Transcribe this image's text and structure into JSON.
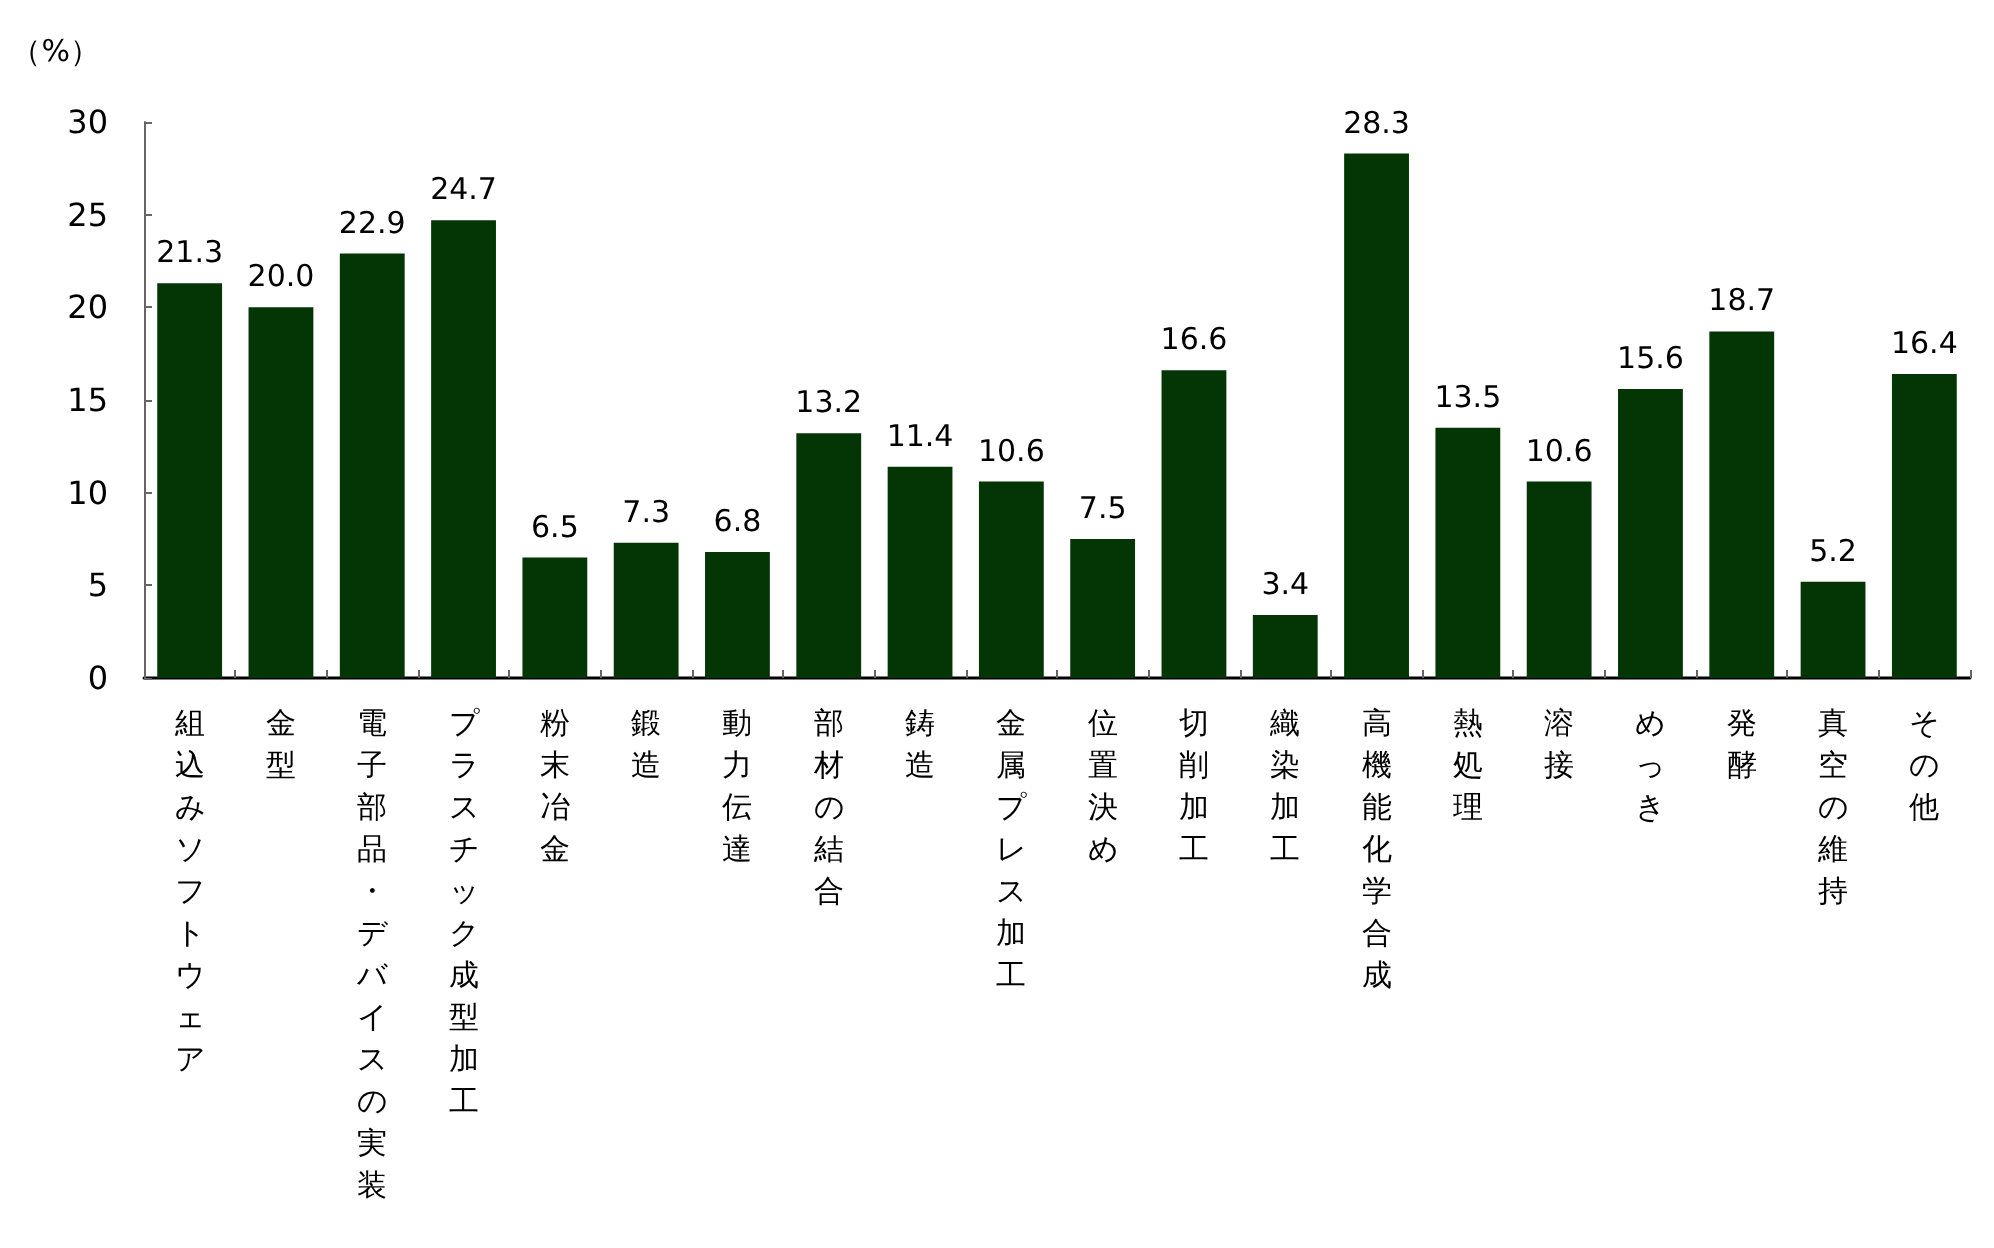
{
  "chart_data": {
    "type": "bar",
    "ylabel": "（%）",
    "categories": [
      "組込みソフトウェア",
      "金型",
      "電子部品・デバイスの実装",
      "プラスチック成型加工",
      "粉末冶金",
      "鍛造",
      "動力伝達",
      "部材の結合",
      "鋳造",
      "金属プレス加工",
      "位置決め",
      "切削加工",
      "織染加工",
      "高機能化学合成",
      "熱処理",
      "溶接",
      "めっき",
      "発酵",
      "真空の維持",
      "その他"
    ],
    "values": [
      21.3,
      20.0,
      22.9,
      24.7,
      6.5,
      7.3,
      6.8,
      13.2,
      11.4,
      10.6,
      7.5,
      16.6,
      3.4,
      28.3,
      13.5,
      10.6,
      15.6,
      18.7,
      5.2,
      16.4
    ],
    "value_labels": [
      "21.3",
      "20.0",
      "22.9",
      "24.7",
      "6.5",
      "7.3",
      "6.8",
      "13.2",
      "11.4",
      "10.6",
      "7.5",
      "16.6",
      "3.4",
      "28.3",
      "13.5",
      "10.6",
      "15.6",
      "18.7",
      "5.2",
      "16.4"
    ],
    "color": "#033604",
    "ylim": [
      0,
      30
    ],
    "yticks": [
      0,
      5,
      10,
      15,
      20,
      25,
      30
    ]
  }
}
